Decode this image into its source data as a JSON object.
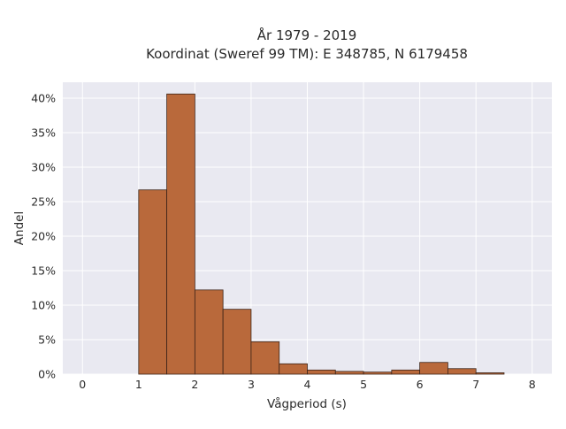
{
  "chart_data": {
    "type": "bar",
    "title_lines": [
      "År 1979 - 2019",
      "Koordinat (Sweref 99 TM): E 348785, N 6179458"
    ],
    "xlabel": "Vågperiod (s)",
    "ylabel": "Andel",
    "xlim": [
      -0.35,
      8.35
    ],
    "ylim": [
      0,
      42.3
    ],
    "x_ticks": [
      0,
      1,
      2,
      3,
      4,
      5,
      6,
      7,
      8
    ],
    "x_tick_labels": [
      "0",
      "1",
      "2",
      "3",
      "4",
      "5",
      "6",
      "7",
      "8"
    ],
    "y_ticks": [
      0,
      5,
      10,
      15,
      20,
      25,
      30,
      35,
      40
    ],
    "y_tick_labels": [
      "0%",
      "5%",
      "10%",
      "15%",
      "20%",
      "25%",
      "30%",
      "35%",
      "40%"
    ],
    "bin_width": 0.5,
    "bins": [
      {
        "start": 1.0,
        "value": 26.7
      },
      {
        "start": 1.5,
        "value": 40.6
      },
      {
        "start": 2.0,
        "value": 12.2
      },
      {
        "start": 2.5,
        "value": 9.4
      },
      {
        "start": 3.0,
        "value": 4.7
      },
      {
        "start": 3.5,
        "value": 1.5
      },
      {
        "start": 4.0,
        "value": 0.6
      },
      {
        "start": 4.5,
        "value": 0.4
      },
      {
        "start": 5.0,
        "value": 0.3
      },
      {
        "start": 5.5,
        "value": 0.6
      },
      {
        "start": 6.0,
        "value": 1.7
      },
      {
        "start": 6.5,
        "value": 0.8
      },
      {
        "start": 7.0,
        "value": 0.2
      }
    ],
    "grid": true,
    "colors": {
      "bar_fill": "#b9693b",
      "bar_stroke": "#3d2418",
      "plot_bg": "#e9e9f1",
      "grid": "#ffffff"
    }
  }
}
